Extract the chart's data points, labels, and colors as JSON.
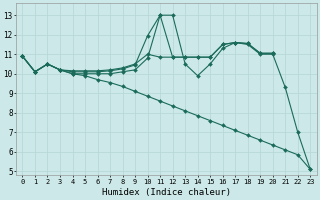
{
  "xlabel": "Humidex (Indice chaleur)",
  "bg_color": "#cce8e8",
  "grid_color": "#b8d8d8",
  "line_color": "#1a6b5a",
  "xlim": [
    -0.5,
    23.5
  ],
  "ylim": [
    4.8,
    13.6
  ],
  "xticks": [
    0,
    1,
    2,
    3,
    4,
    5,
    6,
    7,
    8,
    9,
    10,
    11,
    12,
    13,
    14,
    15,
    16,
    17,
    18,
    19,
    20,
    21,
    22,
    23
  ],
  "yticks": [
    5,
    6,
    7,
    8,
    9,
    10,
    11,
    12,
    13
  ],
  "lines": [
    {
      "x": [
        0,
        1,
        2,
        3,
        4,
        5,
        6,
        7,
        8,
        9,
        10,
        11,
        12,
        13,
        14,
        15,
        16,
        17,
        18,
        19,
        20,
        21,
        22,
        23
      ],
      "y": [
        10.9,
        10.1,
        10.5,
        10.2,
        10.0,
        9.9,
        9.7,
        9.55,
        9.35,
        9.1,
        8.85,
        8.6,
        8.35,
        8.1,
        7.85,
        7.6,
        7.35,
        7.1,
        6.85,
        6.6,
        6.35,
        6.1,
        5.85,
        5.1
      ]
    },
    {
      "x": [
        0,
        1,
        2,
        3,
        4,
        5,
        6,
        7,
        8,
        9,
        10,
        11,
        12,
        13,
        14,
        15,
        16,
        17,
        18,
        19,
        20,
        21,
        22,
        23
      ],
      "y": [
        10.9,
        10.1,
        10.5,
        10.2,
        10.0,
        10.0,
        10.0,
        10.0,
        10.1,
        10.2,
        10.8,
        13.0,
        13.0,
        10.5,
        9.9,
        10.5,
        11.3,
        11.6,
        11.5,
        11.0,
        11.0,
        9.3,
        7.0,
        5.1
      ]
    },
    {
      "x": [
        0,
        1,
        2,
        3,
        4,
        5,
        6,
        7,
        8,
        9,
        10,
        11,
        12,
        13,
        14,
        15,
        16,
        17,
        18,
        19,
        20
      ],
      "y": [
        10.9,
        10.1,
        10.5,
        10.2,
        10.15,
        10.15,
        10.15,
        10.2,
        10.3,
        10.5,
        11.0,
        10.85,
        10.85,
        10.85,
        10.85,
        10.85,
        11.5,
        11.6,
        11.55,
        11.05,
        11.05
      ]
    },
    {
      "x": [
        0,
        1,
        2,
        3,
        4,
        5,
        6,
        7,
        8,
        9,
        10,
        11,
        12,
        13,
        14,
        15,
        16,
        17,
        18,
        19,
        20
      ],
      "y": [
        10.9,
        10.1,
        10.5,
        10.2,
        10.1,
        10.1,
        10.1,
        10.15,
        10.25,
        10.45,
        11.95,
        13.0,
        10.85,
        10.85,
        10.85,
        10.85,
        11.5,
        11.6,
        11.55,
        11.05,
        11.05
      ]
    }
  ]
}
